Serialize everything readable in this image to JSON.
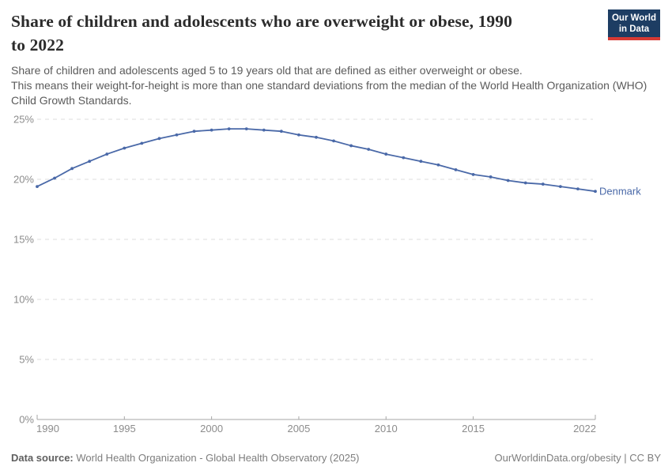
{
  "header": {
    "title_line1": "Share of children and adolescents who are overweight or obese, 1990",
    "title_line2": "to 2022",
    "subtitle_sentence1": "Share of children and adolescents aged 5 to 19 years old that are defined as either overweight or obese.",
    "subtitle_rest": "This means their weight-for-height is more than one standard deviations from the median of the World Health Organization (WHO) Child Growth Standards."
  },
  "logo": {
    "line1": "Our World",
    "line2": "in Data",
    "bg_color": "#1d3d63",
    "accent_color": "#d73a34"
  },
  "chart_data": {
    "type": "line",
    "title": "Share of children and adolescents who are overweight or obese, 1990 to 2022",
    "x": [
      1990,
      1991,
      1992,
      1993,
      1994,
      1995,
      1996,
      1997,
      1998,
      1999,
      2000,
      2001,
      2002,
      2003,
      2004,
      2005,
      2006,
      2007,
      2008,
      2009,
      2010,
      2011,
      2012,
      2013,
      2014,
      2015,
      2016,
      2017,
      2018,
      2019,
      2020,
      2021,
      2022
    ],
    "series": [
      {
        "name": "Denmark",
        "color": "#4a69a8",
        "values": [
          19.4,
          20.1,
          20.9,
          21.5,
          22.1,
          22.6,
          23.0,
          23.4,
          23.7,
          24.0,
          24.1,
          24.2,
          24.2,
          24.1,
          24.0,
          23.7,
          23.5,
          23.2,
          22.8,
          22.5,
          22.1,
          21.8,
          21.5,
          21.2,
          20.8,
          20.4,
          20.2,
          19.9,
          19.7,
          19.6,
          19.4,
          19.2,
          19.0
        ]
      }
    ],
    "xticks": [
      1990,
      1995,
      2000,
      2005,
      2010,
      2015,
      2022
    ],
    "yticks": [
      0,
      5,
      10,
      15,
      20,
      25
    ],
    "ytick_suffix": "%",
    "xlim": [
      1990,
      2022
    ],
    "ylim": [
      0,
      25
    ],
    "grid": "horizontal-dashed",
    "legend_position": "end-of-line",
    "entity_label": "Denmark",
    "xlabel": "",
    "ylabel": ""
  },
  "footer": {
    "source_label": "Data source:",
    "source_text": " World Health Organization - Global Health Observatory (2025)",
    "attribution": "OurWorldinData.org/obesity | CC BY"
  },
  "style_colors": {
    "gridline": "#dcdcdc",
    "axis_line": "#a6a6a6",
    "tick_label": "#8c8c8c",
    "title_text": "#2b2b2b",
    "subtitle_text": "#5b5b5b"
  }
}
